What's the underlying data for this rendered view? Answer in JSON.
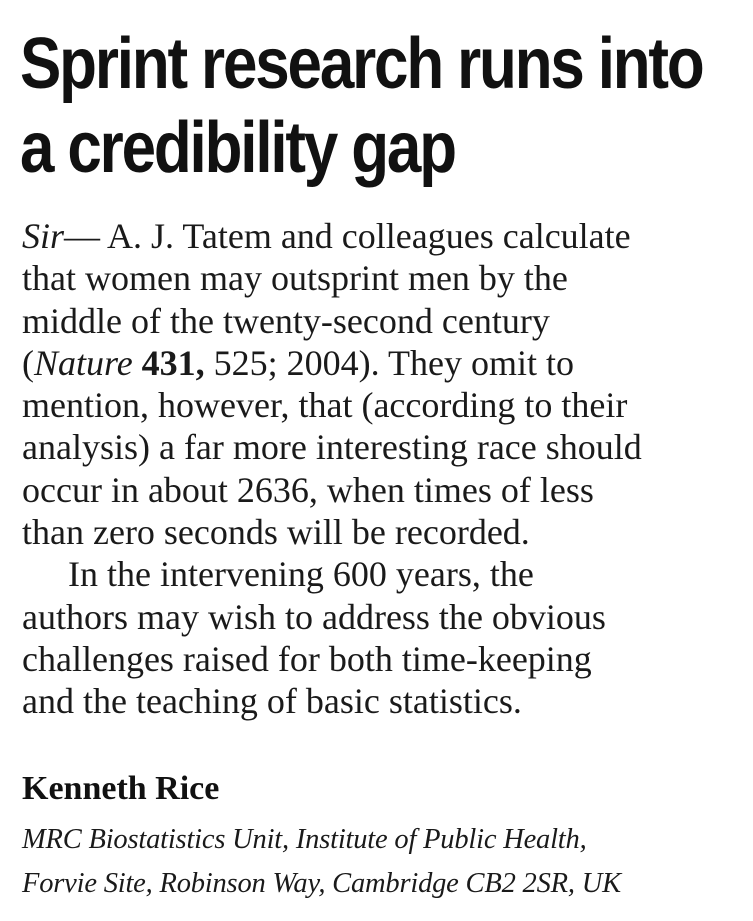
{
  "letter": {
    "headline": {
      "line1": "Sprint research runs into",
      "line2": "a credibility gap"
    },
    "body": {
      "salutation": "Sir",
      "dash": "—",
      "line1_rest": " A. J. Tatem and colleagues calculate",
      "line2": "that women may outsprint men by the",
      "line3": "middle of the twenty-second century",
      "line4_open": "(",
      "line4_journal": "Nature",
      "line4_space": " ",
      "line4_volume": "431,",
      "line4_rest": " 525; 2004). They omit to",
      "line5": "mention, however, that (according to their",
      "line6": "analysis) a far more interesting race should",
      "line7": "occur in about 2636, when times of less",
      "line8": "than zero seconds will be recorded.",
      "line9": "In the intervening 600 years, the",
      "line10": "authors may wish to address the obvious",
      "line11": "challenges raised for both time-keeping",
      "line12": "and the teaching of basic statistics."
    },
    "author": "Kenneth Rice",
    "affiliation": {
      "line1": "MRC Biostatistics Unit, Institute of Public Health,",
      "line2": "Forvie Site, Robinson Way, Cambridge CB2 2SR, UK"
    }
  }
}
